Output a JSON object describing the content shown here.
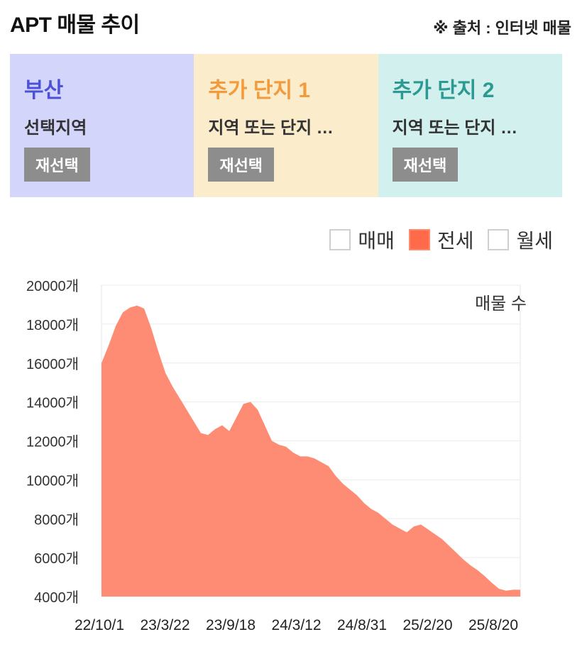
{
  "header": {
    "title": "APT 매물 추이",
    "source": "※ 출처 : 인터넷 매물"
  },
  "panels": [
    {
      "name": "부산",
      "sub": "선택지역",
      "button": "재선택"
    },
    {
      "name": "추가 단지 1",
      "sub": "지역 또는 단지 …",
      "button": "재선택"
    },
    {
      "name": "추가 단지 2",
      "sub": "지역 또는 단지 …",
      "button": "재선택"
    }
  ],
  "legend": [
    {
      "label": "매매",
      "active": false
    },
    {
      "label": "전세",
      "active": true
    },
    {
      "label": "월세",
      "active": false
    }
  ],
  "colors": {
    "series_fill": "#fe8c74",
    "active_legend": "#ff6b4a"
  },
  "chart_data": {
    "type": "area",
    "title": "",
    "annotation": "매물 수",
    "ylabel": "",
    "xlabel": "",
    "ylim": [
      4000,
      20000
    ],
    "yticks": [
      4000,
      6000,
      8000,
      10000,
      12000,
      14000,
      16000,
      18000,
      20000
    ],
    "ytick_suffix": "개",
    "xtick_labels": [
      "22/10/1",
      "23/3/22",
      "23/9/18",
      "24/3/12",
      "24/8/31",
      "25/2/20",
      "25/8/20"
    ],
    "grid": true,
    "series": [
      {
        "name": "전세",
        "x": [
          "22/10/1",
          "22/10/15",
          "22/11/1",
          "22/11/20",
          "22/12/10",
          "23/1/1",
          "23/1/20",
          "23/2/10",
          "23/3/1",
          "23/3/22",
          "23/4/10",
          "23/5/1",
          "23/5/20",
          "23/6/10",
          "23/7/1",
          "23/7/20",
          "23/8/10",
          "23/8/25",
          "23/9/5",
          "23/9/18",
          "23/10/1",
          "23/10/15",
          "23/11/1",
          "23/11/20",
          "23/12/5",
          "23/12/20",
          "24/1/5",
          "24/1/25",
          "24/2/10",
          "24/2/25",
          "24/3/12",
          "24/3/30",
          "24/4/20",
          "24/5/10",
          "24/6/1",
          "24/6/20",
          "24/7/10",
          "24/8/1",
          "24/8/31",
          "24/9/20",
          "24/10/10",
          "24/11/1",
          "24/11/25",
          "24/12/15",
          "25/1/5",
          "25/1/25",
          "25/2/10",
          "25/2/20",
          "25/3/5",
          "25/3/20",
          "25/4/10",
          "25/5/1",
          "25/5/25",
          "25/6/20",
          "25/7/15",
          "25/8/5",
          "25/8/20",
          "25/9/5",
          "25/9/25",
          "25/10/10"
        ],
        "values": [
          16000,
          16900,
          17900,
          18600,
          18850,
          18950,
          18800,
          17800,
          16600,
          15500,
          14800,
          14200,
          13600,
          13000,
          12400,
          12300,
          12600,
          12800,
          12500,
          13200,
          13900,
          14000,
          13600,
          12800,
          12000,
          11800,
          11700,
          11400,
          11200,
          11200,
          11100,
          10900,
          10700,
          10200,
          9800,
          9500,
          9200,
          8800,
          8500,
          8300,
          8000,
          7700,
          7500,
          7300,
          7600,
          7700,
          7450,
          7200,
          6950,
          6600,
          6250,
          5900,
          5600,
          5350,
          5050,
          4700,
          4400,
          4300,
          4350,
          4350
        ]
      }
    ]
  }
}
